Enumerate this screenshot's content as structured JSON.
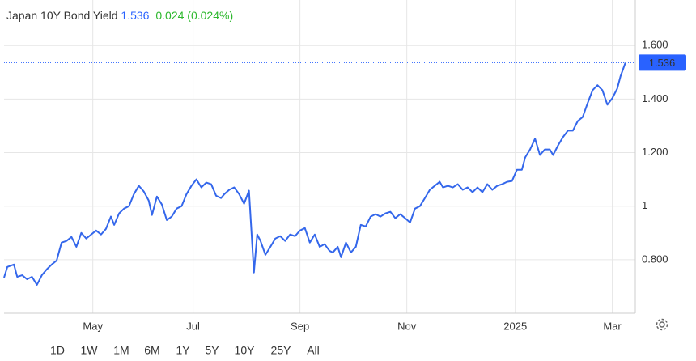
{
  "chart_data": {
    "type": "line",
    "title": "Japan 10Y Bond Yield",
    "price": 1.536,
    "change": 0.024,
    "change_percent": {
      "value": 0.024,
      "label": "(0.024%)"
    },
    "price_color": "#2962ff",
    "change_color": "#2eb82e",
    "color": "#3467eb",
    "grid": true,
    "x": [
      0,
      2,
      6,
      8,
      11,
      14,
      17,
      20,
      23,
      26,
      29,
      32,
      35,
      38,
      41,
      44,
      47,
      50,
      53,
      56,
      59,
      62,
      65,
      67,
      70,
      73,
      76,
      79,
      82,
      85,
      88,
      90,
      93,
      96,
      99,
      102,
      105,
      108,
      111,
      114,
      117,
      120,
      123,
      126,
      129,
      132,
      134,
      137,
      140,
      143,
      146,
      149,
      152,
      154,
      156,
      159,
      162,
      165,
      168,
      171,
      174,
      177,
      180,
      183,
      186,
      189,
      192,
      195,
      198,
      200,
      203,
      205,
      208,
      211,
      214,
      217,
      220,
      223,
      226,
      229,
      232,
      235,
      238,
      241,
      244,
      247,
      250,
      253,
      256,
      259,
      262,
      265,
      267,
      270,
      273,
      276,
      279,
      282,
      285,
      288,
      291,
      294,
      297,
      300,
      303,
      306,
      309,
      312,
      315,
      317,
      320,
      323,
      326,
      329,
      332,
      334,
      337,
      340,
      343,
      346,
      349,
      352,
      355,
      358,
      361,
      364,
      367,
      370,
      373,
      375,
      378
    ],
    "series": [
      {
        "name": "Japan 10Y Bond Yield",
        "values": [
          0.733,
          0.773,
          0.782,
          0.736,
          0.742,
          0.727,
          0.736,
          0.706,
          0.742,
          0.764,
          0.782,
          0.797,
          0.864,
          0.87,
          0.885,
          0.848,
          0.9,
          0.879,
          0.894,
          0.909,
          0.894,
          0.915,
          0.961,
          0.93,
          0.973,
          0.991,
          1.0,
          1.045,
          1.076,
          1.055,
          1.021,
          0.967,
          1.036,
          1.006,
          0.948,
          0.961,
          0.991,
          1.0,
          1.045,
          1.076,
          1.1,
          1.07,
          1.088,
          1.082,
          1.039,
          1.03,
          1.045,
          1.061,
          1.07,
          1.045,
          1.009,
          1.058,
          0.752,
          0.894,
          0.87,
          0.818,
          0.848,
          0.879,
          0.888,
          0.87,
          0.894,
          0.888,
          0.909,
          0.918,
          0.864,
          0.894,
          0.848,
          0.858,
          0.833,
          0.827,
          0.848,
          0.809,
          0.864,
          0.827,
          0.848,
          0.93,
          0.924,
          0.961,
          0.97,
          0.961,
          0.973,
          0.979,
          0.955,
          0.97,
          0.955,
          0.939,
          0.991,
          1.0,
          1.03,
          1.061,
          1.076,
          1.091,
          1.07,
          1.076,
          1.07,
          1.082,
          1.061,
          1.07,
          1.052,
          1.07,
          1.052,
          1.082,
          1.061,
          1.076,
          1.082,
          1.091,
          1.094,
          1.136,
          1.136,
          1.182,
          1.212,
          1.252,
          1.191,
          1.212,
          1.212,
          1.191,
          1.227,
          1.258,
          1.282,
          1.282,
          1.318,
          1.333,
          1.385,
          1.433,
          1.452,
          1.433,
          1.379,
          1.403,
          1.439,
          1.485,
          1.536
        ]
      }
    ],
    "xlim": [
      0,
      384
    ],
    "xticks": [
      {
        "value": 54,
        "label": "May"
      },
      {
        "value": 115,
        "label": "Jul"
      },
      {
        "value": 180,
        "label": "Sep"
      },
      {
        "value": 245,
        "label": "Nov"
      },
      {
        "value": 311,
        "label": "2025"
      },
      {
        "value": 370,
        "label": "Mar"
      }
    ],
    "ylim": [
      0.6,
      1.77
    ],
    "yticks": [
      {
        "value": 0.8,
        "label": "0.800"
      },
      1,
      {
        "value": 1.2,
        "label": "1.200"
      },
      {
        "value": 1.4,
        "label": "1.400"
      },
      {
        "value": 1.6,
        "label": "1.600"
      }
    ],
    "ranges": [
      "1D",
      "1W",
      "1M",
      "6M",
      "1Y",
      "5Y",
      "10Y",
      "25Y",
      "All"
    ],
    "active_range": "1Y"
  }
}
